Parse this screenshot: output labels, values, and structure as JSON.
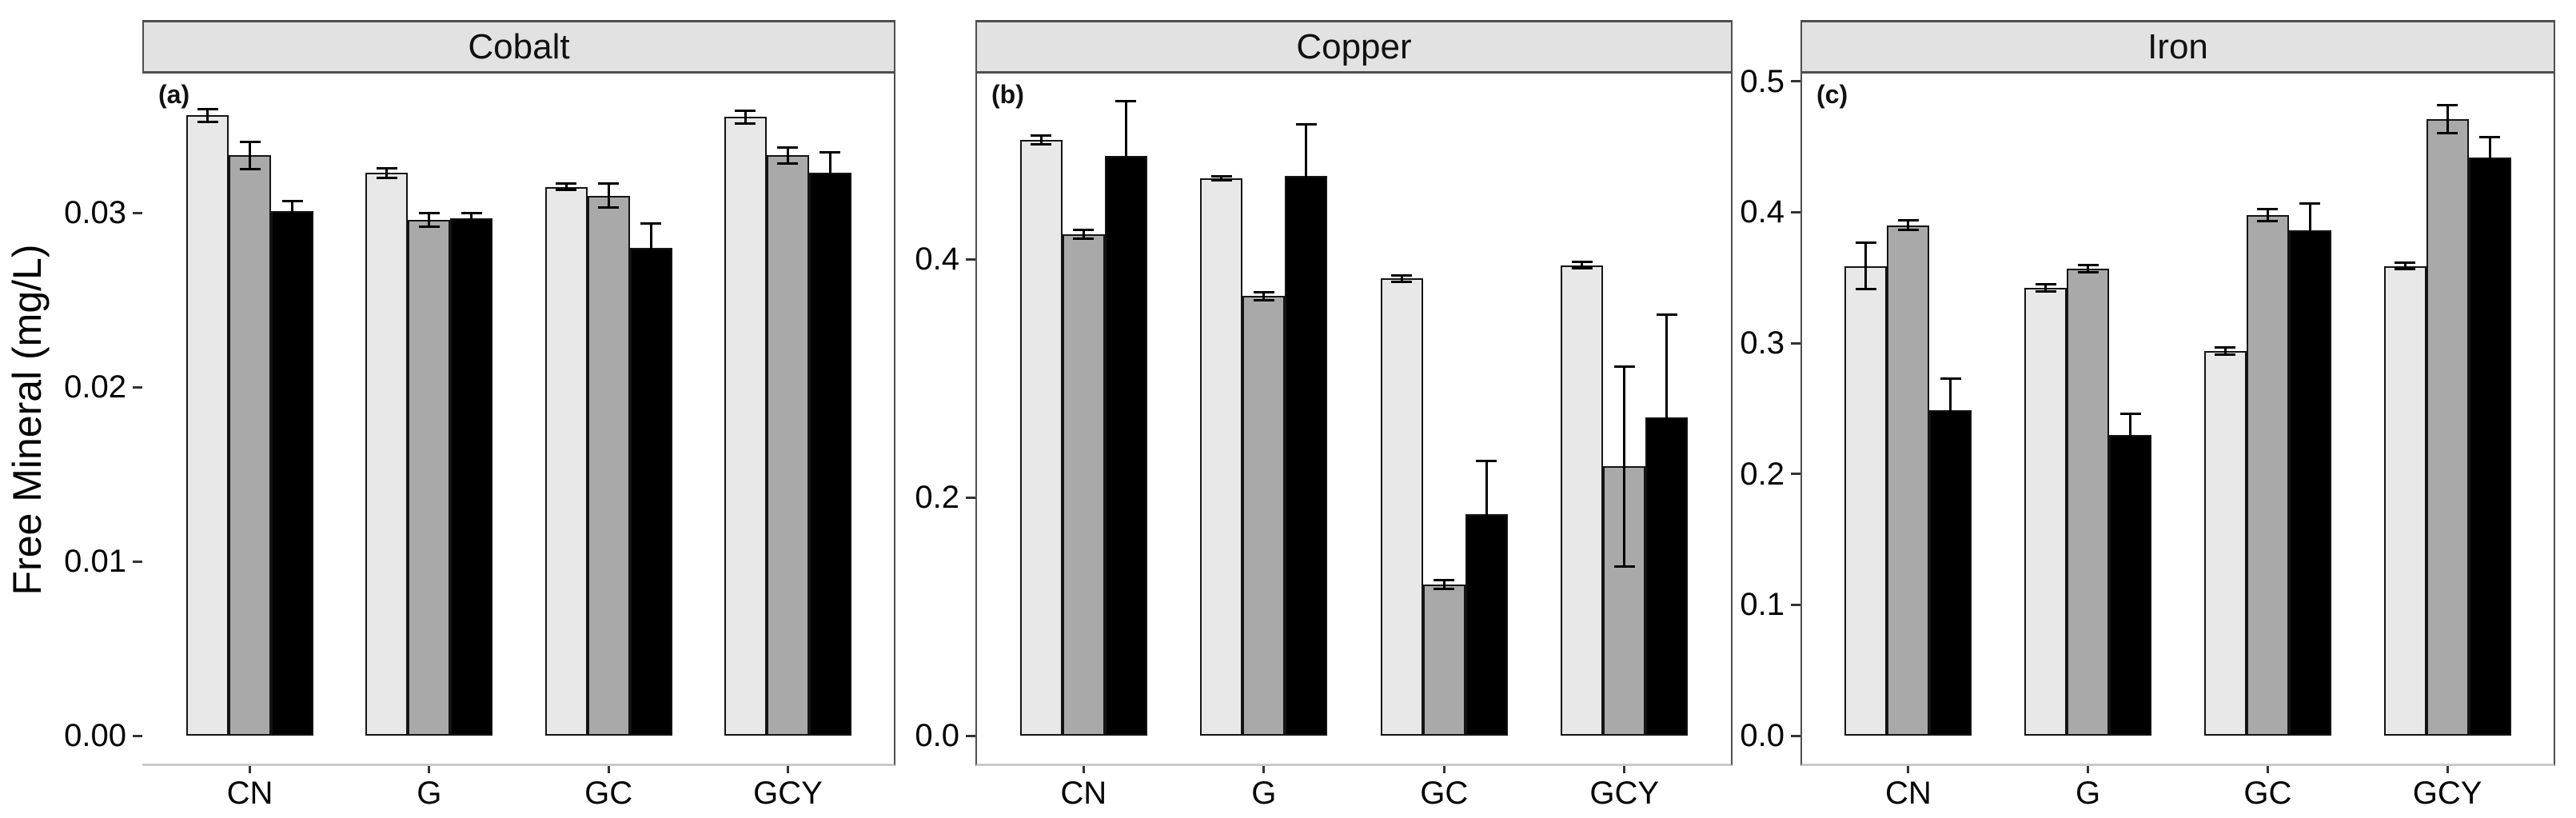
{
  "figure": {
    "y_axis_title": "Free Mineral (mg/L)"
  },
  "colors": {
    "series_light": "#e8e8e8",
    "series_gray": "#a9a9a9",
    "series_black": "#000000",
    "strip_background": "#e2e2e2",
    "panel_border": "#4f4f4f",
    "bottom_border": "#c9c9c9",
    "bar_outline": "#141414"
  },
  "chart_data": [
    {
      "type": "bar",
      "title": "Cobalt",
      "panel_letter": "(a)",
      "xlabel": "",
      "ylabel": "Free Mineral (mg/L)",
      "categories": [
        "CN",
        "G",
        "GC",
        "GCY"
      ],
      "ylim": [
        0,
        0.038
      ],
      "yticks": [
        {
          "value": 0.0,
          "label": "0.00"
        },
        {
          "value": 0.01,
          "label": "0.01"
        },
        {
          "value": 0.02,
          "label": "0.02"
        },
        {
          "value": 0.03,
          "label": "0.03"
        }
      ],
      "grid": false,
      "legend": "none",
      "series": [
        {
          "name": "light-gray",
          "fill": "#e8e8e8",
          "values": [
            0.0356,
            0.0323,
            0.0315,
            0.0355
          ],
          "errors": [
            0.0004,
            0.0003,
            0.0002,
            0.0004
          ]
        },
        {
          "name": "gray",
          "fill": "#a9a9a9",
          "values": [
            0.0333,
            0.0296,
            0.031,
            0.0333
          ],
          "errors": [
            0.0008,
            0.0004,
            0.0007,
            0.0005
          ]
        },
        {
          "name": "black",
          "fill": "#000000",
          "values": [
            0.0301,
            0.0297,
            0.028,
            0.0323
          ],
          "errors": [
            0.0006,
            0.0003,
            0.0014,
            0.0012
          ]
        }
      ]
    },
    {
      "type": "bar",
      "title": "Copper",
      "panel_letter": "(b)",
      "xlabel": "",
      "ylabel": "Free Mineral (mg/L)",
      "categories": [
        "CN",
        "G",
        "GC",
        "GCY"
      ],
      "ylim": [
        0,
        0.556
      ],
      "yticks": [
        {
          "value": 0.0,
          "label": "0.0"
        },
        {
          "value": 0.2,
          "label": "0.2"
        },
        {
          "value": 0.4,
          "label": "0.4"
        }
      ],
      "grid": false,
      "legend": "none",
      "series": [
        {
          "name": "light-gray",
          "fill": "#e8e8e8",
          "values": [
            0.5,
            0.468,
            0.384,
            0.395
          ],
          "errors": [
            0.004,
            0.002,
            0.003,
            0.003
          ]
        },
        {
          "name": "gray",
          "fill": "#a9a9a9",
          "values": [
            0.421,
            0.369,
            0.127,
            0.226
          ],
          "errors": [
            0.004,
            0.004,
            0.004,
            0.084
          ]
        },
        {
          "name": "black",
          "fill": "#000000",
          "values": [
            0.487,
            0.47,
            0.186,
            0.267
          ],
          "errors": [
            0.046,
            0.044,
            0.045,
            0.087
          ]
        }
      ]
    },
    {
      "type": "bar",
      "title": "Iron",
      "panel_letter": "(c)",
      "xlabel": "",
      "ylabel": "Free Mineral (mg/L)",
      "categories": [
        "CN",
        "G",
        "GC",
        "GCY"
      ],
      "ylim": [
        0,
        0.506
      ],
      "yticks": [
        {
          "value": 0.0,
          "label": "0.0"
        },
        {
          "value": 0.1,
          "label": "0.1"
        },
        {
          "value": 0.2,
          "label": "0.2"
        },
        {
          "value": 0.3,
          "label": "0.3"
        },
        {
          "value": 0.4,
          "label": "0.4"
        },
        {
          "value": 0.5,
          "label": "0.5"
        }
      ],
      "grid": false,
      "legend": "none",
      "series": [
        {
          "name": "light-gray",
          "fill": "#e8e8e8",
          "values": [
            0.359,
            0.342,
            0.294,
            0.359
          ],
          "errors": [
            0.018,
            0.003,
            0.003,
            0.003
          ]
        },
        {
          "name": "gray",
          "fill": "#a9a9a9",
          "values": [
            0.39,
            0.357,
            0.398,
            0.471
          ],
          "errors": [
            0.004,
            0.003,
            0.005,
            0.011
          ]
        },
        {
          "name": "black",
          "fill": "#000000",
          "values": [
            0.249,
            0.23,
            0.386,
            0.442
          ],
          "errors": [
            0.024,
            0.016,
            0.021,
            0.016
          ]
        }
      ]
    }
  ]
}
